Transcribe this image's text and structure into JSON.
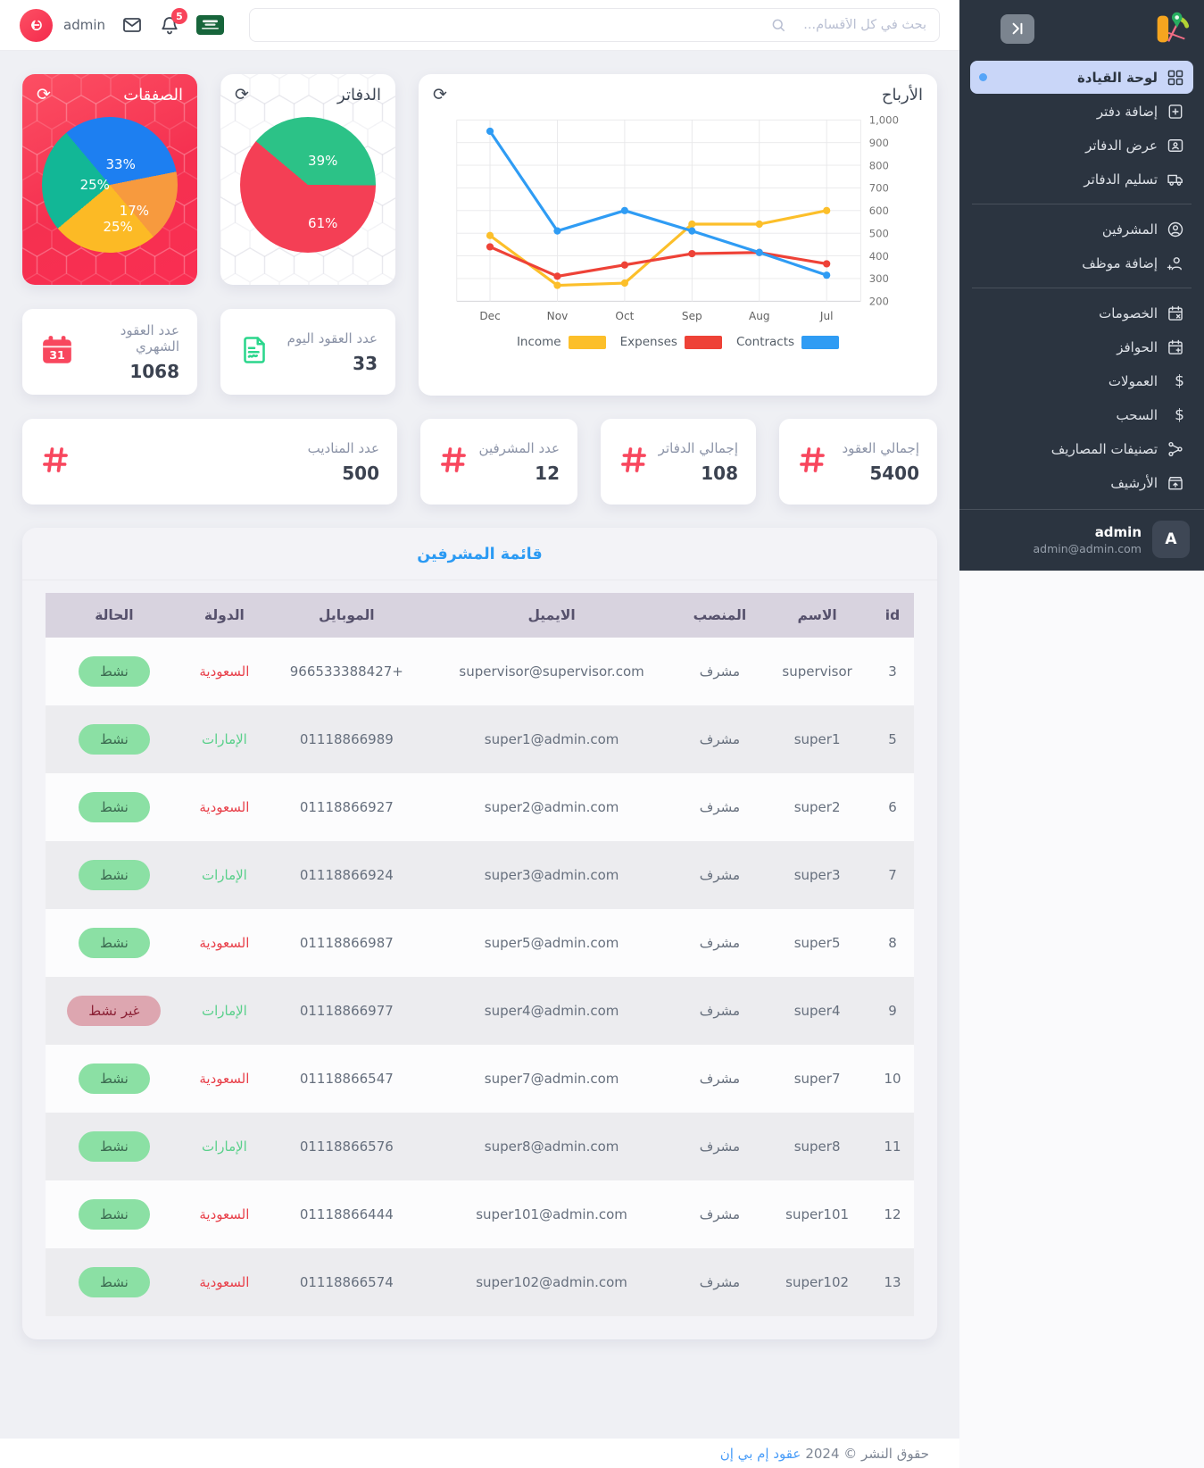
{
  "topbar": {
    "username": "admin",
    "notifications_badge": "5",
    "search_placeholder": "بحث في كل الأقسام...",
    "flag": "saudi-arabia"
  },
  "sidebar": {
    "items": [
      {
        "label": "لوحة القيادة",
        "active": true
      },
      {
        "label": "إضافة دفتر"
      },
      {
        "label": "عرض الدفاتر"
      },
      {
        "label": "تسليم الدفاتر"
      },
      {
        "label": "المشرفين"
      },
      {
        "label": "إضافة موظف"
      },
      {
        "label": "الخصومات"
      },
      {
        "label": "الحوافز"
      },
      {
        "label": "العمولات"
      },
      {
        "label": "السحب"
      },
      {
        "label": "تصنيفات المصاريف"
      },
      {
        "label": "الأرشيف"
      }
    ],
    "user": {
      "name": "admin",
      "email": "admin@admin.com",
      "avatar_letter": "A"
    }
  },
  "icons": {
    "refresh": "⟳",
    "dollar": "$"
  },
  "colors": {
    "accent_blue": "#2b9af3",
    "danger_red": "#f8475e",
    "success_green": "#8be0a4",
    "sidebar_bg": "#2b3440",
    "active_item_bg": "#c9d6f8"
  },
  "chart_data": [
    {
      "type": "pie",
      "title": "الصفقات",
      "start_angle": -40,
      "slices": [
        {
          "label": "33%",
          "value": 33,
          "color": "#1d7ff1"
        },
        {
          "label": "17%",
          "value": 17,
          "color": "#f79a3e"
        },
        {
          "label": "25%",
          "value": 25,
          "color": "#fcba25"
        },
        {
          "label": "25%",
          "value": 25,
          "color": "#12b796"
        }
      ]
    },
    {
      "type": "pie",
      "title": "الدفاتر",
      "start_angle": -50,
      "slices": [
        {
          "label": "39%",
          "value": 39,
          "color": "#2cc287"
        },
        {
          "label": "61%",
          "value": 61,
          "color": "#f43f55"
        }
      ]
    },
    {
      "type": "line",
      "title": "الأرباح",
      "x": [
        "Dec",
        "Nov",
        "Oct",
        "Sep",
        "Aug",
        "Jul"
      ],
      "series": [
        {
          "name": "Income",
          "color": "#fcbf2a",
          "values": [
            490,
            270,
            280,
            540,
            540,
            600
          ]
        },
        {
          "name": "Expenses",
          "color": "#ee4237",
          "values": [
            440,
            310,
            360,
            410,
            415,
            365
          ]
        },
        {
          "name": "Contracts",
          "color": "#2f9cf4",
          "values": [
            950,
            510,
            600,
            510,
            415,
            315
          ]
        }
      ],
      "ylim": [
        200,
        1000
      ],
      "ytick_step": 100,
      "grid": true,
      "legend_position": "bottom"
    }
  ],
  "stats": [
    {
      "label": "عدد العقود الشهري",
      "value": "1068",
      "icon": "calendar-icon"
    },
    {
      "label": "عدد العقود اليوم",
      "value": "33",
      "icon": "contract-icon"
    },
    {
      "label": "إجمالي العقود",
      "value": "5400",
      "icon": "hash-icon"
    },
    {
      "label": "إجمالي الدفاتر",
      "value": "108",
      "icon": "hash-icon"
    },
    {
      "label": "عدد المشرفين",
      "value": "12",
      "icon": "hash-icon"
    },
    {
      "label": "عدد المناديب",
      "value": "500",
      "icon": "hash-icon"
    }
  ],
  "table": {
    "title": "قائمة المشرفين",
    "columns": [
      "id",
      "الاسم",
      "المنصب",
      "الايميل",
      "الموبايل",
      "الدولة",
      "الحالة"
    ],
    "rows": [
      {
        "id": "3",
        "name": "supervisor",
        "role": "مشرف",
        "email": "supervisor@supervisor.com",
        "mobile": "+966533388427",
        "country": "السعودية",
        "country_color": "red",
        "status": "نشط",
        "status_type": "active"
      },
      {
        "id": "5",
        "name": "super1",
        "role": "مشرف",
        "email": "super1@admin.com",
        "mobile": "01118866989",
        "country": "الإمارات",
        "country_color": "green",
        "status": "نشط",
        "status_type": "active"
      },
      {
        "id": "6",
        "name": "super2",
        "role": "مشرف",
        "email": "super2@admin.com",
        "mobile": "01118866927",
        "country": "السعودية",
        "country_color": "red",
        "status": "نشط",
        "status_type": "active"
      },
      {
        "id": "7",
        "name": "super3",
        "role": "مشرف",
        "email": "super3@admin.com",
        "mobile": "01118866924",
        "country": "الإمارات",
        "country_color": "green",
        "status": "نشط",
        "status_type": "active"
      },
      {
        "id": "8",
        "name": "super5",
        "role": "مشرف",
        "email": "super5@admin.com",
        "mobile": "01118866987",
        "country": "السعودية",
        "country_color": "red",
        "status": "نشط",
        "status_type": "active"
      },
      {
        "id": "9",
        "name": "super4",
        "role": "مشرف",
        "email": "super4@admin.com",
        "mobile": "01118866977",
        "country": "الإمارات",
        "country_color": "green",
        "status": "غير نشط",
        "status_type": "inactive"
      },
      {
        "id": "10",
        "name": "super7",
        "role": "مشرف",
        "email": "super7@admin.com",
        "mobile": "01118866547",
        "country": "السعودية",
        "country_color": "red",
        "status": "نشط",
        "status_type": "active"
      },
      {
        "id": "11",
        "name": "super8",
        "role": "مشرف",
        "email": "super8@admin.com",
        "mobile": "01118866576",
        "country": "الإمارات",
        "country_color": "green",
        "status": "نشط",
        "status_type": "active"
      },
      {
        "id": "12",
        "name": "super101",
        "role": "مشرف",
        "email": "super101@admin.com",
        "mobile": "01118866444",
        "country": "السعودية",
        "country_color": "red",
        "status": "نشط",
        "status_type": "active"
      },
      {
        "id": "13",
        "name": "super102",
        "role": "مشرف",
        "email": "super102@admin.com",
        "mobile": "01118866574",
        "country": "السعودية",
        "country_color": "red",
        "status": "نشط",
        "status_type": "active"
      }
    ]
  },
  "footer": {
    "text": "حقوق النشر © 2024",
    "brand": "عقود إم بي إن"
  }
}
